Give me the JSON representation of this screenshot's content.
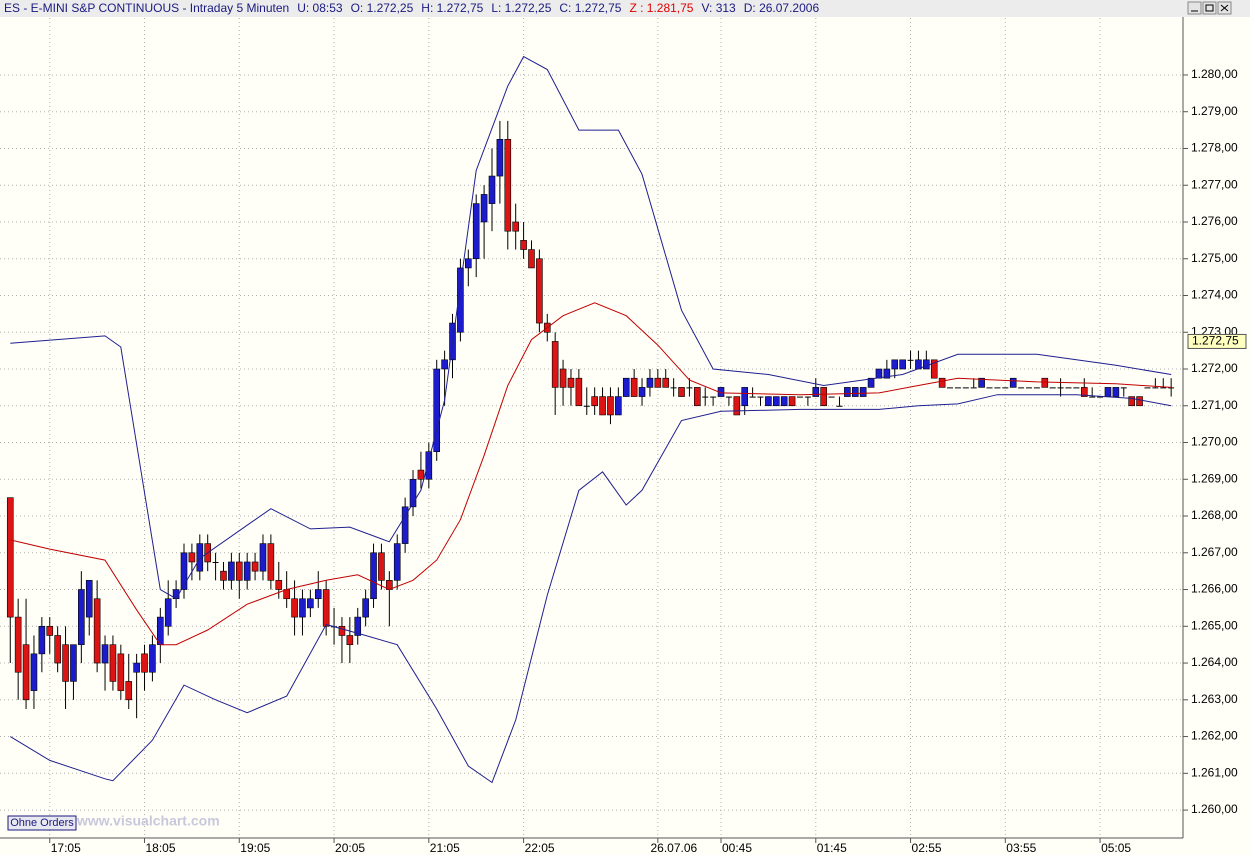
{
  "chart_data": {
    "type": "candlestick",
    "header": [
      {
        "text": "ES - E-MINI S&P CONTINUOUS - Intraday 5 Minuten",
        "color": "#1a1a80"
      },
      {
        "text": "U: 08:53",
        "color": "#1a1a80"
      },
      {
        "text": "O: 1.272,25",
        "color": "#1a1a80"
      },
      {
        "text": "H: 1.272,75",
        "color": "#1a1a80"
      },
      {
        "text": "L: 1.272,25",
        "color": "#1a1a80"
      },
      {
        "text": "C: 1.272,75",
        "color": "#1a1a80"
      },
      {
        "text": "Z : 1.281,75",
        "color": "#e00000"
      },
      {
        "text": "V: 313",
        "color": "#1a1a80"
      },
      {
        "text": "D: 26.07.2006",
        "color": "#1a1a80"
      }
    ],
    "button": "Ohne Orders",
    "watermark": "www.visualchart.com",
    "last_price": {
      "value": 1272.75,
      "label": "1.272,75"
    },
    "up_color": "#1c1ccc",
    "down_color": "#dd1414",
    "xlim": [
      -1.3,
      148.5
    ],
    "ylim": [
      1259.24,
      1281.55
    ],
    "grid": true,
    "xticks": [
      {
        "value": 5,
        "label": "17:05"
      },
      {
        "value": 17,
        "label": "18:05"
      },
      {
        "value": 29,
        "label": "19:05"
      },
      {
        "value": 41,
        "label": "20:05"
      },
      {
        "value": 53,
        "label": "21:05"
      },
      {
        "value": 65,
        "label": "22:05"
      },
      {
        "value": 82,
        "label": "26.07.06"
      },
      {
        "value": 90,
        "label": "00:45"
      },
      {
        "value": 102,
        "label": "01:45"
      },
      {
        "value": 114,
        "label": "02:55"
      },
      {
        "value": 126,
        "label": "03:55"
      },
      {
        "value": 138,
        "label": "05:05"
      }
    ],
    "yticks": [
      {
        "value": 1260,
        "label": "1.260,00"
      },
      {
        "value": 1261,
        "label": "1.261,00"
      },
      {
        "value": 1262,
        "label": "1.262,00"
      },
      {
        "value": 1263,
        "label": "1.263,00"
      },
      {
        "value": 1264,
        "label": "1.264,00"
      },
      {
        "value": 1265,
        "label": "1.265,00"
      },
      {
        "value": 1266,
        "label": "1.266,00"
      },
      {
        "value": 1267,
        "label": "1.267,00"
      },
      {
        "value": 1268,
        "label": "1.268,00"
      },
      {
        "value": 1269,
        "label": "1.269,00"
      },
      {
        "value": 1270,
        "label": "1.270,00"
      },
      {
        "value": 1271,
        "label": "1.271,00"
      },
      {
        "value": 1272,
        "label": "1.272,00"
      },
      {
        "value": 1273,
        "label": "1.273,00"
      },
      {
        "value": 1274,
        "label": "1.274,00"
      },
      {
        "value": 1275,
        "label": "1.275,00"
      },
      {
        "value": 1276,
        "label": "1.276,00"
      },
      {
        "value": 1277,
        "label": "1.277,00"
      },
      {
        "value": 1278,
        "label": "1.278,00"
      },
      {
        "value": 1279,
        "label": "1.279,00"
      },
      {
        "value": 1280,
        "label": "1.280,00"
      }
    ],
    "ohlc": [
      [
        1268.5,
        1268.5,
        1264.0,
        1265.25
      ],
      [
        1265.25,
        1265.75,
        1263.0,
        1263.75
      ],
      [
        1264.5,
        1265.75,
        1262.75,
        1263.0
      ],
      [
        1263.25,
        1264.75,
        1262.75,
        1264.25
      ],
      [
        1264.25,
        1265.25,
        1263.75,
        1265.0
      ],
      [
        1265.0,
        1265.25,
        1264.25,
        1264.75
      ],
      [
        1264.75,
        1265.0,
        1263.75,
        1264.0
      ],
      [
        1264.5,
        1265.0,
        1262.75,
        1263.5
      ],
      [
        1263.5,
        1264.5,
        1263.0,
        1264.5
      ],
      [
        1264.5,
        1266.5,
        1264.0,
        1266.0
      ],
      [
        1265.25,
        1266.25,
        1264.75,
        1266.25
      ],
      [
        1265.75,
        1266.25,
        1263.75,
        1264.0
      ],
      [
        1264.0,
        1264.75,
        1263.25,
        1264.5
      ],
      [
        1264.5,
        1264.75,
        1263.25,
        1263.5
      ],
      [
        1264.25,
        1264.5,
        1263.0,
        1263.25
      ],
      [
        1263.5,
        1264.25,
        1262.75,
        1263.0
      ],
      [
        1263.75,
        1264.25,
        1262.5,
        1264.0
      ],
      [
        1264.25,
        1264.5,
        1263.25,
        1263.75
      ],
      [
        1263.75,
        1264.75,
        1263.5,
        1264.5
      ],
      [
        1264.5,
        1265.5,
        1264.0,
        1265.25
      ],
      [
        1265.0,
        1266.25,
        1264.75,
        1265.75
      ],
      [
        1265.75,
        1266.25,
        1265.5,
        1266.0
      ],
      [
        1266.0,
        1267.25,
        1265.75,
        1267.0
      ],
      [
        1267.0,
        1267.25,
        1266.25,
        1266.75
      ],
      [
        1266.5,
        1267.5,
        1266.25,
        1267.25
      ],
      [
        1267.25,
        1267.5,
        1266.5,
        1266.75
      ],
      [
        1266.75,
        1267.0,
        1266.25,
        1266.75
      ],
      [
        1266.5,
        1266.75,
        1266.0,
        1266.25
      ],
      [
        1266.25,
        1267.0,
        1266.0,
        1266.75
      ],
      [
        1266.75,
        1267.0,
        1265.75,
        1266.25
      ],
      [
        1266.25,
        1267.0,
        1266.0,
        1266.75
      ],
      [
        1266.75,
        1267.0,
        1266.25,
        1266.5
      ],
      [
        1266.5,
        1267.5,
        1266.25,
        1267.25
      ],
      [
        1267.25,
        1267.5,
        1266.0,
        1266.25
      ],
      [
        1266.25,
        1266.75,
        1265.75,
        1266.0
      ],
      [
        1266.0,
        1266.5,
        1265.5,
        1265.75
      ],
      [
        1265.75,
        1266.25,
        1264.75,
        1265.25
      ],
      [
        1265.25,
        1266.0,
        1264.75,
        1265.75
      ],
      [
        1265.5,
        1266.0,
        1265.25,
        1265.75
      ],
      [
        1265.75,
        1266.5,
        1265.5,
        1266.0
      ],
      [
        1266.0,
        1266.25,
        1264.75,
        1265.0
      ],
      [
        1265.0,
        1265.5,
        1264.5,
        1265.0
      ],
      [
        1265.0,
        1265.25,
        1264.0,
        1264.75
      ],
      [
        1264.75,
        1265.25,
        1264.0,
        1264.5
      ],
      [
        1264.75,
        1265.5,
        1264.5,
        1265.25
      ],
      [
        1265.25,
        1266.0,
        1265.0,
        1265.75
      ],
      [
        1265.75,
        1267.25,
        1265.5,
        1267.0
      ],
      [
        1267.0,
        1267.25,
        1266.0,
        1266.25
      ],
      [
        1266.25,
        1266.5,
        1265.0,
        1266.0
      ],
      [
        1266.25,
        1267.5,
        1266.0,
        1267.25
      ],
      [
        1267.25,
        1268.5,
        1267.0,
        1268.25
      ],
      [
        1268.25,
        1269.25,
        1268.0,
        1269.0
      ],
      [
        1269.25,
        1269.75,
        1268.75,
        1269.0
      ],
      [
        1269.0,
        1270.0,
        1268.75,
        1269.75
      ],
      [
        1269.75,
        1272.25,
        1269.5,
        1272.0
      ],
      [
        1272.0,
        1272.5,
        1271.0,
        1272.25
      ],
      [
        1272.25,
        1273.5,
        1271.75,
        1273.25
      ],
      [
        1273.0,
        1275.0,
        1272.75,
        1274.75
      ],
      [
        1274.75,
        1275.25,
        1274.25,
        1275.0
      ],
      [
        1275.0,
        1276.75,
        1274.5,
        1276.5
      ],
      [
        1276.0,
        1277.0,
        1275.0,
        1276.75
      ],
      [
        1276.5,
        1278.0,
        1275.75,
        1277.25
      ],
      [
        1277.25,
        1278.75,
        1276.5,
        1278.25
      ],
      [
        1278.25,
        1278.75,
        1275.25,
        1275.75
      ],
      [
        1276.0,
        1276.5,
        1275.25,
        1275.75
      ],
      [
        1275.5,
        1276.0,
        1275.0,
        1275.25
      ],
      [
        1275.25,
        1275.5,
        1274.75,
        1274.75
      ],
      [
        1275.0,
        1275.25,
        1273.0,
        1273.25
      ],
      [
        1273.25,
        1273.5,
        1272.75,
        1273.0
      ],
      [
        1272.75,
        1273.0,
        1270.75,
        1271.5
      ],
      [
        1272.0,
        1272.25,
        1271.0,
        1271.5
      ],
      [
        1271.75,
        1272.0,
        1271.0,
        1271.5
      ],
      [
        1271.75,
        1272.0,
        1271.0,
        1271.0
      ],
      [
        1271.0,
        1271.5,
        1270.75,
        1271.0
      ],
      [
        1271.25,
        1271.5,
        1270.75,
        1271.0
      ],
      [
        1271.25,
        1271.5,
        1270.75,
        1270.75
      ],
      [
        1271.25,
        1271.5,
        1270.5,
        1270.75
      ],
      [
        1270.75,
        1271.5,
        1270.75,
        1271.25
      ],
      [
        1271.25,
        1271.75,
        1271.25,
        1271.75
      ],
      [
        1271.75,
        1272.0,
        1271.25,
        1271.25
      ],
      [
        1271.25,
        1271.75,
        1271.0,
        1271.5
      ],
      [
        1271.5,
        1272.0,
        1271.25,
        1271.75
      ],
      [
        1271.75,
        1272.0,
        1271.5,
        1271.5
      ],
      [
        1271.75,
        1272.0,
        1271.5,
        1271.5
      ],
      [
        1271.5,
        1271.75,
        1271.25,
        1271.5
      ],
      [
        1271.5,
        1271.5,
        1271.25,
        1271.25
      ],
      [
        1271.5,
        1271.75,
        1271.25,
        1271.5
      ],
      [
        1271.5,
        1271.5,
        1271.0,
        1271.0
      ],
      [
        1271.25,
        1271.5,
        1271.0,
        1271.25
      ],
      [
        1271.25,
        1271.25,
        1271.0,
        1271.25
      ],
      [
        1271.25,
        1271.5,
        1271.25,
        1271.5
      ],
      [
        1271.25,
        1271.25,
        1271.0,
        1271.25
      ],
      [
        1271.25,
        1271.25,
        1270.75,
        1270.75
      ],
      [
        1271.0,
        1271.5,
        1270.75,
        1271.5
      ],
      [
        1271.25,
        1271.5,
        1271.25,
        1271.25
      ],
      [
        1271.25,
        1271.25,
        1271.0,
        1271.25
      ],
      [
        1271.0,
        1271.25,
        1271.0,
        1271.25
      ],
      [
        1271.0,
        1271.25,
        1271.0,
        1271.25
      ],
      [
        1271.0,
        1271.25,
        1271.0,
        1271.25
      ],
      [
        1271.25,
        1271.25,
        1271.0,
        1271.0
      ],
      [
        1271.25,
        1271.25,
        1271.25,
        1271.25
      ],
      [
        1271.25,
        1271.25,
        1271.0,
        1271.25
      ],
      [
        1271.25,
        1271.75,
        1271.25,
        1271.5
      ],
      [
        1271.5,
        1271.5,
        1271.0,
        1271.0
      ],
      [
        1271.25,
        1271.25,
        1271.25,
        1271.25
      ],
      [
        1271.0,
        1271.25,
        1271.0,
        1271.0
      ],
      [
        1271.25,
        1271.5,
        1271.25,
        1271.5
      ],
      [
        1271.25,
        1271.5,
        1271.25,
        1271.5
      ],
      [
        1271.25,
        1271.5,
        1271.25,
        1271.5
      ],
      [
        1271.5,
        1271.75,
        1271.5,
        1271.75
      ],
      [
        1271.75,
        1272.0,
        1271.75,
        1272.0
      ],
      [
        1271.75,
        1272.25,
        1271.75,
        1272.0
      ],
      [
        1272.0,
        1272.25,
        1271.75,
        1272.25
      ],
      [
        1272.0,
        1272.25,
        1272.0,
        1272.25
      ],
      [
        1272.25,
        1272.5,
        1272.0,
        1272.25
      ],
      [
        1272.0,
        1272.5,
        1272.0,
        1272.25
      ],
      [
        1272.0,
        1272.5,
        1272.0,
        1272.25
      ],
      [
        1272.25,
        1272.25,
        1271.75,
        1271.75
      ],
      [
        1271.75,
        1271.75,
        1271.5,
        1271.5
      ],
      [
        1271.5,
        1271.5,
        1271.5,
        1271.5
      ],
      [
        1271.5,
        1271.5,
        1271.5,
        1271.5
      ],
      [
        1271.5,
        1271.5,
        1271.5,
        1271.5
      ],
      [
        1271.5,
        1271.75,
        1271.5,
        1271.5
      ],
      [
        1271.5,
        1271.75,
        1271.5,
        1271.75
      ],
      [
        1271.5,
        1271.5,
        1271.5,
        1271.5
      ],
      [
        1271.5,
        1271.5,
        1271.5,
        1271.5
      ],
      [
        1271.5,
        1271.5,
        1271.5,
        1271.5
      ],
      [
        1271.5,
        1271.75,
        1271.5,
        1271.75
      ],
      [
        1271.5,
        1271.5,
        1271.5,
        1271.5
      ],
      [
        1271.5,
        1271.5,
        1271.5,
        1271.5
      ],
      [
        1271.5,
        1271.5,
        1271.5,
        1271.5
      ],
      [
        1271.75,
        1271.75,
        1271.5,
        1271.5
      ],
      [
        1271.5,
        1271.5,
        1271.5,
        1271.5
      ],
      [
        1271.5,
        1271.75,
        1271.25,
        1271.5
      ],
      [
        1271.5,
        1271.5,
        1271.5,
        1271.5
      ],
      [
        1271.5,
        1271.5,
        1271.5,
        1271.5
      ],
      [
        1271.5,
        1271.75,
        1271.25,
        1271.25
      ],
      [
        1271.25,
        1271.5,
        1271.25,
        1271.25
      ],
      [
        1271.25,
        1271.25,
        1271.25,
        1271.25
      ],
      [
        1271.25,
        1271.5,
        1271.25,
        1271.5
      ],
      [
        1271.25,
        1271.5,
        1271.25,
        1271.5
      ],
      [
        1271.5,
        1271.5,
        1271.25,
        1271.5
      ],
      [
        1271.25,
        1271.25,
        1271.0,
        1271.0
      ],
      [
        1271.25,
        1271.25,
        1271.0,
        1271.0
      ],
      [
        1271.5,
        1271.5,
        1271.5,
        1271.5
      ],
      [
        1271.5,
        1271.75,
        1271.5,
        1271.5
      ],
      [
        1271.5,
        1271.75,
        1271.5,
        1271.5
      ],
      [
        1271.5,
        1271.75,
        1271.25,
        1271.5
      ]
    ],
    "lines": [
      {
        "color": "#1f1f8f",
        "x": [
          0,
          12,
          14,
          19,
          21,
          24,
          30,
          33,
          38,
          43,
          48,
          52,
          55,
          59,
          63,
          65,
          68,
          72,
          77,
          80,
          85,
          89,
          96,
          103,
          113,
          120,
          130,
          140,
          147
        ],
        "values": [
          1272.7,
          1272.9,
          1272.6,
          1266.0,
          1265.75,
          1266.85,
          1267.75,
          1268.2,
          1267.65,
          1267.7,
          1267.3,
          1268.7,
          1271.15,
          1277.4,
          1279.7,
          1280.5,
          1280.15,
          1278.5,
          1278.5,
          1277.3,
          1273.6,
          1272.0,
          1271.85,
          1271.55,
          1271.85,
          1272.4,
          1272.4,
          1272.1,
          1271.85
        ]
      },
      {
        "color": "#1f1f8f",
        "x": [
          0,
          5,
          12,
          13,
          18,
          22,
          26,
          30,
          35,
          40,
          45,
          49,
          54,
          58,
          61,
          64,
          68,
          72,
          75,
          78,
          80,
          85,
          90,
          100,
          110,
          115,
          120,
          125,
          135,
          142,
          147
        ],
        "values": [
          1262.0,
          1261.35,
          1260.85,
          1260.8,
          1261.9,
          1263.4,
          1263.0,
          1262.65,
          1263.1,
          1265.05,
          1264.75,
          1264.5,
          1262.75,
          1261.2,
          1260.75,
          1262.45,
          1265.85,
          1268.7,
          1269.2,
          1268.3,
          1268.7,
          1270.6,
          1270.85,
          1270.9,
          1270.9,
          1271.0,
          1271.05,
          1271.3,
          1271.3,
          1271.2,
          1271.0
        ]
      },
      {
        "color": "#c00000",
        "x": [
          0,
          5,
          12,
          16,
          19,
          21,
          25,
          30,
          35,
          40,
          44,
          48,
          51,
          54,
          57,
          60,
          63,
          66,
          70,
          74,
          78,
          82,
          86,
          90,
          100,
          110,
          115,
          120,
          130,
          140,
          147
        ],
        "values": [
          1267.35,
          1267.1,
          1266.8,
          1265.45,
          1264.5,
          1264.5,
          1264.9,
          1265.6,
          1266.0,
          1266.25,
          1266.4,
          1266.0,
          1266.25,
          1266.8,
          1267.9,
          1269.65,
          1271.55,
          1272.8,
          1273.45,
          1273.8,
          1273.45,
          1272.65,
          1271.7,
          1271.35,
          1271.3,
          1271.35,
          1271.55,
          1271.75,
          1271.65,
          1271.6,
          1271.5
        ]
      }
    ]
  }
}
